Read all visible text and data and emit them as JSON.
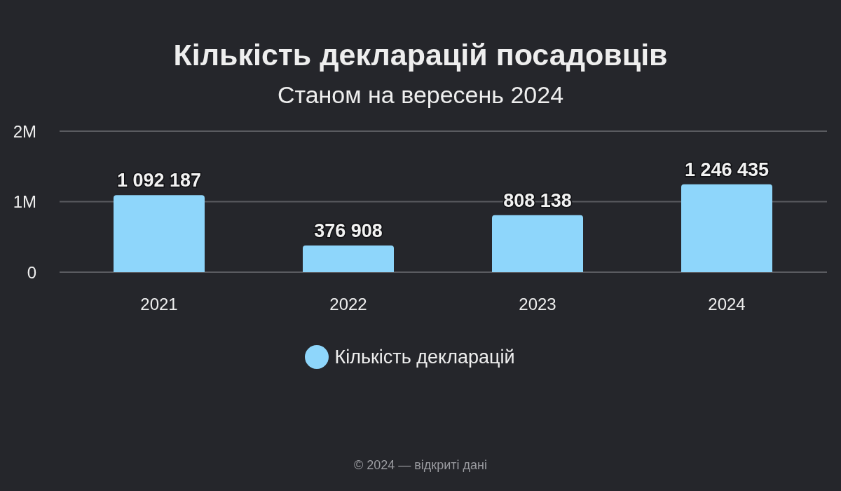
{
  "chart_data": {
    "type": "bar",
    "title": "Кількість декларацій посадовців",
    "subtitle": "Станом на вересень 2024",
    "categories": [
      "2021",
      "2022",
      "2023",
      "2024"
    ],
    "series": [
      {
        "name": "Кількість декларацій",
        "color": "#8ed6fb",
        "values": [
          1092187,
          376908,
          808138,
          1246435
        ],
        "value_labels": [
          "1 092 187",
          "376 908",
          "808 138",
          "1 246 435"
        ]
      }
    ],
    "ylim": [
      0,
      2000000
    ],
    "yticks": [
      0,
      {
        "value": 1000000,
        "label": "1M"
      },
      {
        "value": 2000000,
        "label": "2M"
      }
    ],
    "grid": "y",
    "legend": "bottom",
    "annotations": [
      "© 2024 — відкриті дані"
    ]
  }
}
